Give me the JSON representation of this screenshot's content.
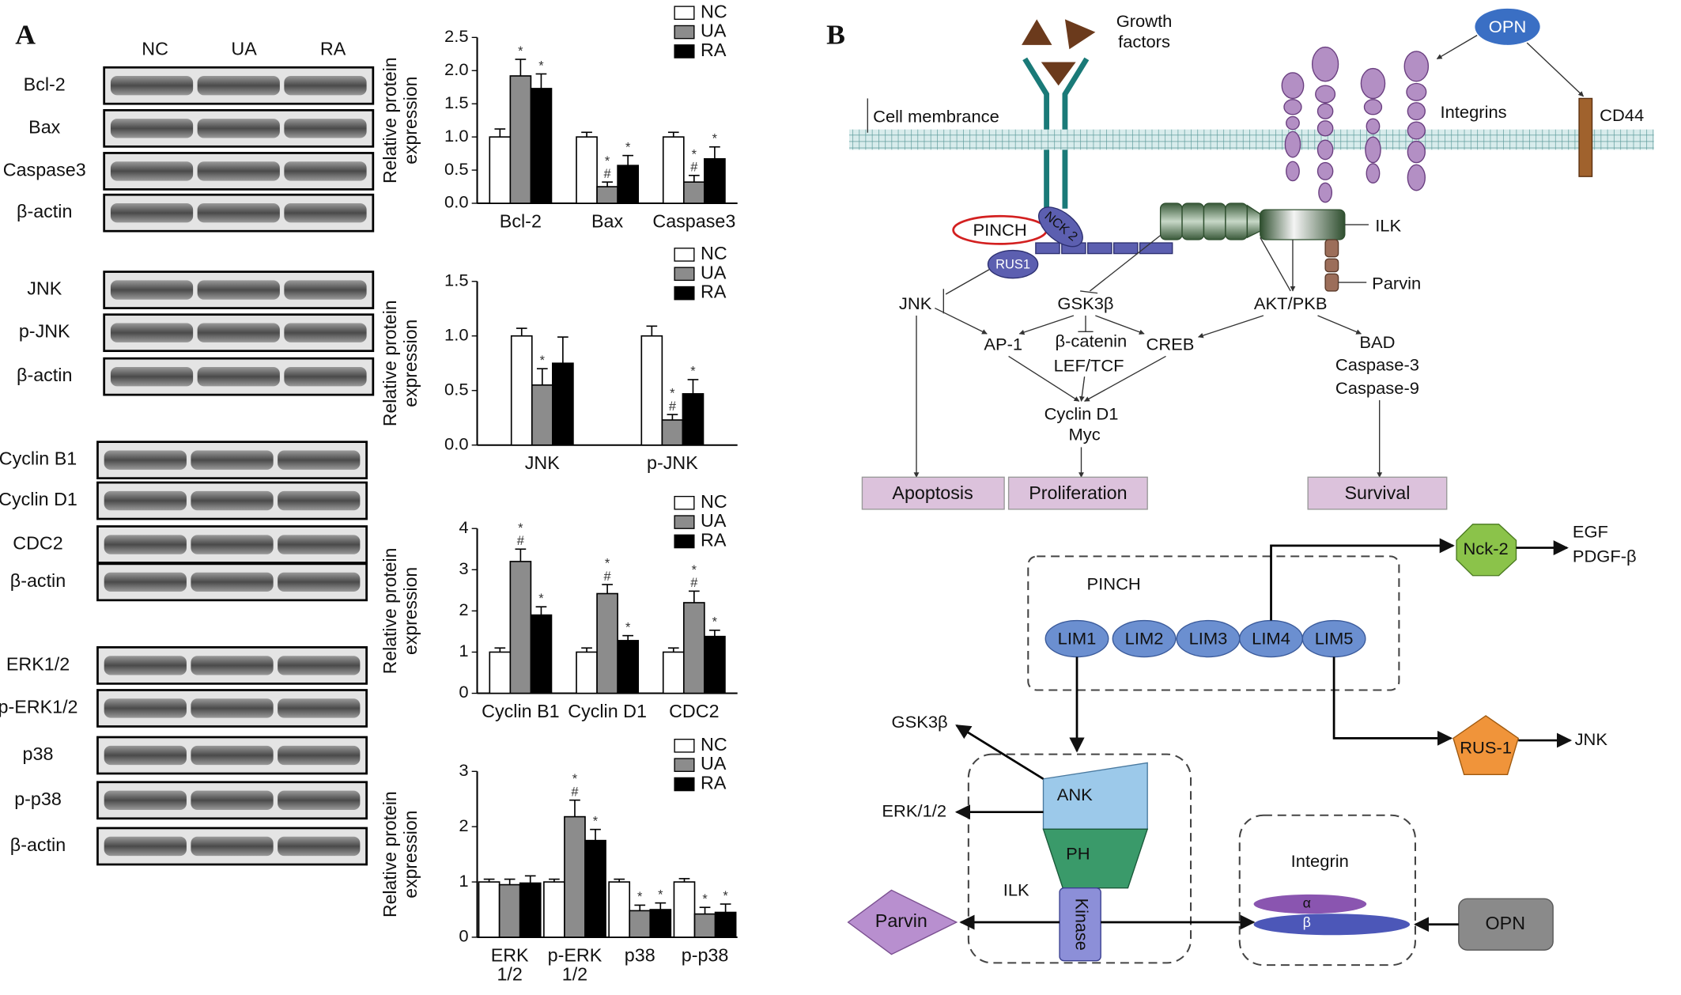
{
  "panel_a": {
    "label": "A",
    "lanes": [
      "NC",
      "UA",
      "RA"
    ],
    "blots": [
      {
        "rows": [
          "Bcl-2",
          "Bax",
          "Caspase3",
          "β-actin"
        ]
      },
      {
        "rows": [
          "JNK",
          "p-JNK",
          "β-actin"
        ]
      },
      {
        "rows": [
          "Cyclin B1",
          "Cyclin D1",
          "CDC2",
          "β-actin"
        ]
      },
      {
        "rows": [
          "ERK1/2",
          "p-ERK1/2",
          "p38",
          "p-p38",
          "β-actin"
        ]
      }
    ]
  },
  "chart_data": [
    {
      "type": "bar",
      "y_label": "Relative protein expression",
      "categories": [
        "Bcl-2",
        "Bax",
        "Caspase3"
      ],
      "series": [
        {
          "name": "NC",
          "color": "#ffffff",
          "values": [
            1.0,
            1.0,
            1.0
          ],
          "errors": [
            0.12,
            0.07,
            0.07
          ],
          "marks": [
            null,
            null,
            null
          ]
        },
        {
          "name": "UA",
          "color": "#8c8c8c",
          "values": [
            1.92,
            0.25,
            0.32
          ],
          "errors": [
            0.25,
            0.07,
            0.1
          ],
          "marks": [
            [
              "*"
            ],
            [
              "*",
              "#"
            ],
            [
              "*",
              "#"
            ]
          ]
        },
        {
          "name": "RA",
          "color": "#000000",
          "values": [
            1.73,
            0.57,
            0.67
          ],
          "errors": [
            0.22,
            0.15,
            0.18
          ],
          "marks": [
            [
              "*"
            ],
            [
              "*"
            ],
            [
              "*"
            ]
          ]
        }
      ],
      "ylim": [
        0,
        2.5
      ],
      "yticks": [
        {
          "value": 0,
          "label": "0.0"
        },
        0.5,
        {
          "value": 1,
          "label": "1.0"
        },
        1.5,
        {
          "value": 2,
          "label": "2.0"
        },
        2.5
      ]
    },
    {
      "type": "bar",
      "y_label": "Relative protein expression",
      "categories": [
        "JNK",
        "p-JNK"
      ],
      "series": [
        {
          "name": "NC",
          "color": "#ffffff",
          "values": [
            1.0,
            1.0
          ],
          "errors": [
            0.07,
            0.09
          ],
          "marks": [
            null,
            null
          ]
        },
        {
          "name": "UA",
          "color": "#8c8c8c",
          "values": [
            0.55,
            0.23
          ],
          "errors": [
            0.15,
            0.05
          ],
          "marks": [
            [
              "*"
            ],
            [
              "*",
              "#"
            ]
          ]
        },
        {
          "name": "RA",
          "color": "#000000",
          "values": [
            0.75,
            0.47
          ],
          "errors": [
            0.24,
            0.13
          ],
          "marks": [
            null,
            [
              "*"
            ]
          ]
        }
      ],
      "ylim": [
        0,
        1.5
      ],
      "yticks": [
        {
          "value": 0,
          "label": "0.0"
        },
        0.5,
        {
          "value": 1,
          "label": "1.0"
        },
        1.5
      ]
    },
    {
      "type": "bar",
      "y_label": "Relative protein expression",
      "categories": [
        "Cyclin B1",
        "Cyclin D1",
        "CDC2"
      ],
      "series": [
        {
          "name": "NC",
          "color": "#ffffff",
          "values": [
            1.0,
            1.0,
            1.0
          ],
          "errors": [
            0.1,
            0.1,
            0.1
          ],
          "marks": [
            null,
            null,
            null
          ]
        },
        {
          "name": "UA",
          "color": "#8c8c8c",
          "values": [
            3.2,
            2.42,
            2.2
          ],
          "errors": [
            0.3,
            0.22,
            0.28
          ],
          "marks": [
            [
              "*",
              "#"
            ],
            [
              "*",
              "#"
            ],
            [
              "*",
              "#"
            ]
          ]
        },
        {
          "name": "RA",
          "color": "#000000",
          "values": [
            1.9,
            1.28,
            1.38
          ],
          "errors": [
            0.2,
            0.12,
            0.15
          ],
          "marks": [
            [
              "*"
            ],
            [
              "*"
            ],
            [
              "*"
            ]
          ]
        }
      ],
      "ylim": [
        0,
        4
      ],
      "yticks": [
        0,
        1,
        2,
        3,
        4
      ]
    },
    {
      "type": "bar",
      "y_label": "Relative protein expression",
      "categories": [
        "ERK 1/2",
        "p-ERK 1/2",
        "p38",
        "p-p38"
      ],
      "series": [
        {
          "name": "NC",
          "color": "#ffffff",
          "values": [
            1.0,
            1.0,
            1.0,
            1.0
          ],
          "errors": [
            0.05,
            0.05,
            0.05,
            0.06
          ],
          "marks": [
            null,
            null,
            null,
            null
          ]
        },
        {
          "name": "UA",
          "color": "#8c8c8c",
          "values": [
            0.95,
            2.18,
            0.48,
            0.42
          ],
          "errors": [
            0.1,
            0.3,
            0.1,
            0.12
          ],
          "marks": [
            null,
            [
              "*",
              "#"
            ],
            [
              "*"
            ],
            [
              "*"
            ]
          ]
        },
        {
          "name": "RA",
          "color": "#000000",
          "values": [
            0.98,
            1.75,
            0.5,
            0.45
          ],
          "errors": [
            0.13,
            0.2,
            0.12,
            0.15
          ],
          "marks": [
            null,
            [
              "*"
            ],
            [
              "*"
            ],
            [
              "*"
            ]
          ]
        }
      ],
      "ylim": [
        0,
        3
      ],
      "yticks": [
        0,
        1,
        2,
        3
      ]
    }
  ],
  "panel_b": {
    "label": "B",
    "membrane_diagram": {
      "growth_factors": [
        "Growth",
        "factors"
      ],
      "opn": "OPN",
      "cell_membrane": "Cell membrance",
      "integrins": "Integrins",
      "cd44": "CD44",
      "pinch": "PINCH",
      "nck2": "NCK 2",
      "rus1": "RUS1",
      "ilk": "ILK",
      "parvin": "Parvin",
      "jnk": "JNK",
      "gsk3b": "GSK3β",
      "akt": "AKT/PKB",
      "ap1": "AP-1",
      "beta_catenin": "β-catenin",
      "creb": "CREB",
      "lef_tcf": "LEF/TCF",
      "survival_targets": [
        "BAD",
        "Caspase-3",
        "Caspase-9"
      ],
      "cyclin_targets": [
        "Cyclin D1",
        "Myc"
      ],
      "outcomes": [
        "Apoptosis",
        "Proliferation",
        "Survival"
      ]
    },
    "domain_diagram": {
      "pinch": "PINCH",
      "lims": [
        "LIM1",
        "LIM2",
        "LIM3",
        "LIM4",
        "LIM5"
      ],
      "nck2": "Nck-2",
      "nck2_targets": [
        "EGF",
        "PDGF-β"
      ],
      "rus1": "RUS-1",
      "rus1_target": "JNK",
      "ank_targets": [
        "GSK3β",
        "ERK/1/2"
      ],
      "domains": [
        "ANK",
        "PH",
        "Kinase"
      ],
      "ilk": "ILK",
      "parvin": "Parvin",
      "integrin": "Integrin",
      "alpha": "α",
      "beta": "β",
      "opn": "OPN"
    }
  }
}
